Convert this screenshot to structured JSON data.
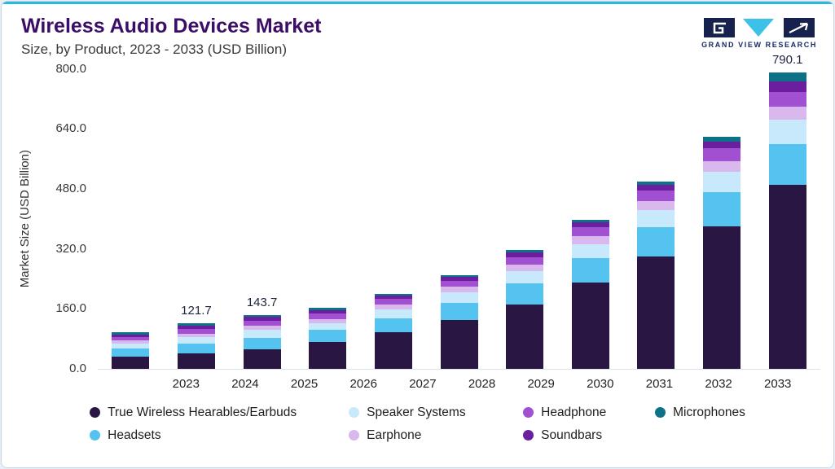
{
  "header": {
    "title": "Wireless Audio Devices Market",
    "subtitle": "Size, by Product, 2023 - 2033 (USD Billion)",
    "brand": "GRAND VIEW RESEARCH"
  },
  "chart_data": {
    "type": "bar",
    "stacked": true,
    "title": "Wireless Audio Devices Market Size, by Product, 2023 - 2033 (USD Billion)",
    "xlabel": "",
    "ylabel": "Market Size (USD Billion)",
    "ylim": [
      0,
      800
    ],
    "grid": false,
    "legend_position": "bottom",
    "yticks": [
      "0.0",
      "160.0",
      "320.0",
      "480.0",
      "640.0",
      "800.0"
    ],
    "ytick_values": [
      0,
      160,
      320,
      480,
      640,
      800
    ],
    "categories": [
      "2023",
      "2024",
      "2025",
      "2026",
      "2027",
      "2028",
      "2029",
      "2030",
      "2031",
      "2032",
      "2033"
    ],
    "series": [
      {
        "name": "True Wireless Hearables/Earbuds",
        "color": "#2a1642",
        "values": [
          31,
          40,
          52,
          72,
          97,
          130,
          172,
          230,
          300,
          380,
          490
        ]
      },
      {
        "name": "Headsets",
        "color": "#55c3f0",
        "values": [
          22,
          27,
          31,
          31,
          38,
          45,
          55,
          65,
          78,
          92,
          110
        ]
      },
      {
        "name": "Speaker Systems",
        "color": "#c8e9fb",
        "values": [
          14,
          17,
          20,
          19,
          24,
          28,
          33,
          38,
          45,
          54,
          65
        ]
      },
      {
        "name": "Earphone",
        "color": "#d9b8ee",
        "values": [
          8,
          10,
          11,
          11,
          13,
          15,
          18,
          21,
          25,
          29,
          34
        ]
      },
      {
        "name": "Headphone",
        "color": "#a050d0",
        "values": [
          10,
          13,
          14,
          14,
          15,
          17,
          20,
          23,
          27,
          33,
          40
        ]
      },
      {
        "name": "Soundbars",
        "color": "#6b1f9e",
        "values": [
          7,
          8.7,
          9.7,
          9,
          8,
          10,
          12,
          13,
          15,
          19,
          28
        ]
      },
      {
        "name": "Microphones",
        "color": "#0d7187",
        "values": [
          5,
          6,
          6,
          7,
          5.5,
          5.6,
          8,
          8,
          10.3,
          13,
          23.1
        ]
      }
    ],
    "totals": [
      97.0,
      121.7,
      143.7,
      163.0,
      200.5,
      250.6,
      318.0,
      398.0,
      500.3,
      620.0,
      790.1
    ],
    "bar_value_labels": {
      "2024": "121.7",
      "2025": "143.7",
      "2033": "790.1"
    },
    "legend_display_order": [
      0,
      2,
      4,
      6,
      1,
      3,
      5
    ]
  }
}
